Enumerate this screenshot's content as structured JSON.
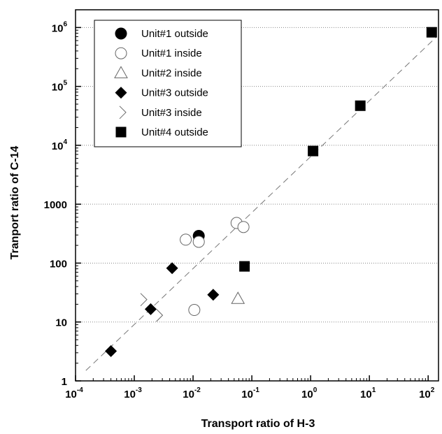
{
  "chart_data": {
    "type": "scatter",
    "xlabel": "Transport ratio of H-3",
    "ylabel": "Tranport ratio of C-14",
    "xscale": "log",
    "yscale": "log",
    "xlim": [
      0.0001,
      150
    ],
    "ylim": [
      1,
      2000000
    ],
    "x_ticks": [
      {
        "base": "10",
        "exp": "-4"
      },
      {
        "base": "10",
        "exp": "-3"
      },
      {
        "base": "10",
        "exp": "-2"
      },
      {
        "base": "10",
        "exp": "-1"
      },
      {
        "base": "10",
        "exp": "0"
      },
      {
        "base": "10",
        "exp": "1"
      },
      {
        "base": "10",
        "exp": "2"
      }
    ],
    "y_ticks": [
      {
        "base": "1",
        "exp": ""
      },
      {
        "base": "10",
        "exp": ""
      },
      {
        "base": "100",
        "exp": ""
      },
      {
        "base": "1000",
        "exp": ""
      },
      {
        "base": "10",
        "exp": "4"
      },
      {
        "base": "10",
        "exp": "5"
      },
      {
        "base": "10",
        "exp": "6"
      }
    ],
    "grid": "horizontal dotted",
    "legend_position": "top-left",
    "reference_line": {
      "style": "dashed",
      "x": [
        0.00015,
        140
      ],
      "y": [
        1.5,
        700000
      ]
    },
    "series": [
      {
        "name": "Unit#1 outside",
        "marker": "circle-filled",
        "points": [
          [
            0.0125,
            290
          ]
        ]
      },
      {
        "name": "Unit#1 inside",
        "marker": "circle-open",
        "points": [
          [
            0.0075,
            250
          ],
          [
            0.0125,
            230
          ],
          [
            0.055,
            480
          ],
          [
            0.072,
            410
          ],
          [
            0.0105,
            16
          ]
        ]
      },
      {
        "name": "Unit#2 inside",
        "marker": "triangle-open",
        "points": [
          [
            0.058,
            25
          ]
        ]
      },
      {
        "name": "Unit#3 outside",
        "marker": "diamond-filled",
        "points": [
          [
            0.0004,
            3.2
          ],
          [
            0.0019,
            16.5
          ],
          [
            0.0044,
            82
          ],
          [
            0.022,
            29
          ]
        ]
      },
      {
        "name": "Unit#3 inside",
        "marker": "diamond-half-open",
        "points": [
          [
            0.00135,
            24
          ],
          [
            0.0025,
            13
          ]
        ]
      },
      {
        "name": "Unit#4 outside",
        "marker": "square-filled",
        "points": [
          [
            1.1,
            8000
          ],
          [
            7,
            47000
          ],
          [
            115,
            830000
          ],
          [
            0.075,
            88
          ]
        ]
      }
    ]
  }
}
